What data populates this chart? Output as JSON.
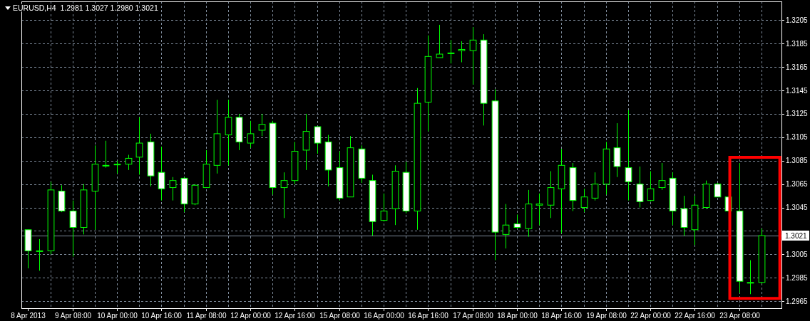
{
  "chart_data": {
    "type": "candlestick",
    "title": "EURUSD,H4  1.2981 1.3027 1.2980 1.3021",
    "color": "#00ff00",
    "grid": true,
    "categories": [
      "8 Apr 2013",
      null,
      null,
      null,
      "9 Apr 08:00",
      null,
      null,
      null,
      "10 Apr 00:00",
      null,
      null,
      null,
      "10 Apr 16:00",
      null,
      null,
      null,
      "11 Apr 08:00",
      null,
      null,
      null,
      "12 Apr 00:00",
      null,
      null,
      null,
      "12 Apr 16:00",
      null,
      null,
      null,
      "15 Apr 08:00",
      null,
      null,
      null,
      "16 Apr 00:00",
      null,
      null,
      null,
      "16 Apr 16:00",
      null,
      null,
      null,
      "17 Apr 08:00",
      null,
      null,
      null,
      "18 Apr 00:00",
      null,
      null,
      null,
      "18 Apr 16:00",
      null,
      null,
      null,
      "19 Apr 08:00",
      null,
      null,
      null,
      "22 Apr 00:00",
      null,
      null,
      null,
      "22 Apr 16:00",
      null,
      null,
      null,
      "23 Apr 08:00",
      null,
      null
    ],
    "ylim": [
      1.2959,
      1.3221
    ],
    "yticks": [
      1.2965,
      1.2985,
      1.3005,
      {
        "value": 1.3025,
        "label": null
      },
      1.3045,
      1.3065,
      1.3085,
      1.3105,
      1.3125,
      1.3145,
      1.3165,
      1.3185,
      1.3205
    ],
    "ref_lines": [
      {
        "axis": "y",
        "value": 1.3021,
        "label": "1.3021",
        "color": "#7f8c9c"
      }
    ],
    "ohlc": [
      [
        1.3026,
        1.3026,
        1.2993,
        1.3008
      ],
      [
        1.3008,
        1.3018,
        1.2991,
        1.3008
      ],
      [
        1.3008,
        1.3067,
        1.3005,
        1.306
      ],
      [
        1.3059,
        1.3064,
        1.3041,
        1.3042
      ],
      [
        1.3042,
        1.3051,
        1.3003,
        1.3028
      ],
      [
        1.3028,
        1.3065,
        1.3022,
        1.306
      ],
      [
        1.3059,
        1.3098,
        1.3026,
        1.3082
      ],
      [
        1.3081,
        1.3102,
        1.3079,
        1.3081
      ],
      [
        1.3082,
        1.3085,
        1.3074,
        1.3082
      ],
      [
        1.3082,
        1.309,
        1.3077,
        1.3087
      ],
      [
        1.3088,
        1.3122,
        1.3073,
        1.31
      ],
      [
        1.3101,
        1.3108,
        1.3063,
        1.3072
      ],
      [
        1.3075,
        1.3097,
        1.3051,
        1.3061
      ],
      [
        1.3062,
        1.3071,
        1.3051,
        1.3068
      ],
      [
        1.307,
        1.3071,
        1.3041,
        1.3048
      ],
      [
        1.3048,
        1.3065,
        1.3047,
        1.3064
      ],
      [
        1.3062,
        1.3094,
        1.3062,
        1.3082
      ],
      [
        1.3081,
        1.3137,
        1.3074,
        1.3108
      ],
      [
        1.3107,
        1.3137,
        1.3081,
        1.3122
      ],
      [
        1.3122,
        1.3125,
        1.3094,
        1.3101
      ],
      [
        1.31,
        1.3119,
        1.3096,
        1.3108
      ],
      [
        1.3111,
        1.3125,
        1.3106,
        1.3116
      ],
      [
        1.3117,
        1.3119,
        1.3056,
        1.3062
      ],
      [
        1.3062,
        1.3075,
        1.3036,
        1.3068
      ],
      [
        1.3068,
        1.3101,
        1.3065,
        1.3093
      ],
      [
        1.3094,
        1.3125,
        1.3077,
        1.311
      ],
      [
        1.3114,
        1.3114,
        1.3091,
        1.31
      ],
      [
        1.3101,
        1.3107,
        1.3063,
        1.3077
      ],
      [
        1.3079,
        1.3093,
        1.3051,
        1.3053
      ],
      [
        1.3054,
        1.3106,
        1.3054,
        1.3096
      ],
      [
        1.3095,
        1.3098,
        1.3066,
        1.307
      ],
      [
        1.3068,
        1.3073,
        1.3021,
        1.3033
      ],
      [
        1.3034,
        1.3057,
        1.3033,
        1.3042
      ],
      [
        1.3044,
        1.3081,
        1.303,
        1.3076
      ],
      [
        1.3075,
        1.3084,
        1.304,
        1.3042
      ],
      [
        1.3042,
        1.3147,
        1.3026,
        1.3134
      ],
      [
        1.3135,
        1.3192,
        1.311,
        1.3174
      ],
      [
        1.3173,
        1.3201,
        1.3173,
        1.3176
      ],
      [
        1.3177,
        1.3188,
        1.3168,
        1.3177
      ],
      [
        1.3179,
        1.3187,
        1.3169,
        1.318
      ],
      [
        1.3179,
        1.3199,
        1.315,
        1.3188
      ],
      [
        1.3188,
        1.3193,
        1.3115,
        1.3134
      ],
      [
        1.3136,
        1.3146,
        1.3,
        1.3024
      ],
      [
        1.3022,
        1.3048,
        1.301,
        1.303
      ],
      [
        1.3031,
        1.3039,
        1.3027,
        1.3028
      ],
      [
        1.3027,
        1.306,
        1.302,
        1.3048
      ],
      [
        1.3047,
        1.3057,
        1.303,
        1.3048
      ],
      [
        1.3047,
        1.3076,
        1.3036,
        1.3062
      ],
      [
        1.3061,
        1.3095,
        1.3023,
        1.3081
      ],
      [
        1.3079,
        1.3083,
        1.3042,
        1.3051
      ],
      [
        1.3045,
        1.3061,
        1.3041,
        1.3054
      ],
      [
        1.3053,
        1.3075,
        1.3051,
        1.3065
      ],
      [
        1.3065,
        1.3101,
        1.3056,
        1.3095
      ],
      [
        1.3096,
        1.3117,
        1.3071,
        1.308
      ],
      [
        1.3079,
        1.3128,
        1.3051,
        1.3067
      ],
      [
        1.3065,
        1.308,
        1.3045,
        1.305
      ],
      [
        1.3051,
        1.3076,
        1.305,
        1.3061
      ],
      [
        1.3062,
        1.3083,
        1.306,
        1.3068
      ],
      [
        1.307,
        1.3075,
        1.303,
        1.3042
      ],
      [
        1.3044,
        1.3055,
        1.3021,
        1.3028
      ],
      [
        1.3026,
        1.3055,
        1.3013,
        1.3047
      ],
      [
        1.3045,
        1.3068,
        1.3044,
        1.3065
      ],
      [
        1.3065,
        1.3066,
        1.3054,
        1.3054
      ],
      [
        1.3054,
        1.3054,
        1.3042,
        1.3042
      ],
      [
        1.3042,
        1.3083,
        1.2972,
        1.2982
      ],
      [
        1.2981,
        1.3,
        1.2971,
        1.2981
      ],
      [
        1.2981,
        1.3027,
        1.298,
        1.3021
      ]
    ]
  }
}
